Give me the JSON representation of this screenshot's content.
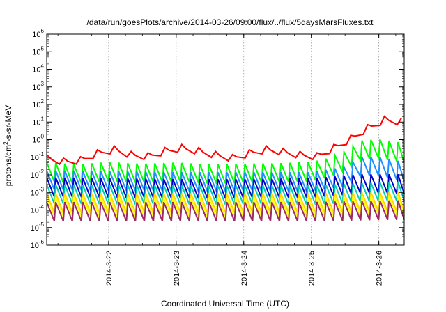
{
  "chart_data": {
    "type": "line",
    "title": "/data/run/goesPlots/archive/2014-03-26/09:00/flux/../flux/5daysMarsFluxes.txt",
    "xlabel": "Coordinated Universal Time (UTC)",
    "ylabel": {
      "prefix": "protons/cm",
      "sup": "2",
      "suffix": "-s-sr-MeV"
    },
    "y_scale": "log",
    "ylim": [
      1e-06,
      1000000.0
    ],
    "y_ticks": [
      {
        "exp": -6,
        "label_base": "10",
        "label_exp": "-6"
      },
      {
        "exp": -5,
        "label_base": "10",
        "label_exp": "-5"
      },
      {
        "exp": -4,
        "label_base": "10",
        "label_exp": "-4"
      },
      {
        "exp": -3,
        "label_base": "10",
        "label_exp": "-3"
      },
      {
        "exp": -2,
        "label_base": "10",
        "label_exp": "-2"
      },
      {
        "exp": -1,
        "label_base": "10",
        "label_exp": "-1"
      },
      {
        "exp": 0,
        "label_base": "10",
        "label_exp": "0"
      },
      {
        "exp": 1,
        "label_base": "10",
        "label_exp": "1"
      },
      {
        "exp": 2,
        "label_base": "10",
        "label_exp": "2"
      },
      {
        "exp": 3,
        "label_base": "10",
        "label_exp": "3"
      },
      {
        "exp": 4,
        "label_base": "10",
        "label_exp": "4"
      },
      {
        "exp": 5,
        "label_base": "10",
        "label_exp": "5"
      },
      {
        "exp": 6,
        "label_base": "10",
        "label_exp": "6"
      }
    ],
    "xlim": [
      "2014-03-21T02:00",
      "2014-03-26T09:00"
    ],
    "x_ticks": [
      {
        "t": "2014-03-22T00:00",
        "label": "2014-3-22"
      },
      {
        "t": "2014-03-23T00:00",
        "label": "2014-3-23"
      },
      {
        "t": "2014-03-24T00:00",
        "label": "2014-3-24"
      },
      {
        "t": "2014-03-25T00:00",
        "label": "2014-3-25"
      },
      {
        "t": "2014-03-26T00:00",
        "label": "2014-3-26"
      }
    ],
    "grid": "vertical dotted at day ticks",
    "series": [
      {
        "color": "#ff0000",
        "sawtooth": false,
        "x": [
          "2014-03-21T02:00",
          "2014-03-21T08:00",
          "2014-03-21T14:00",
          "2014-03-21T20:00",
          "2014-03-22T02:00",
          "2014-03-22T08:00",
          "2014-03-22T14:00",
          "2014-03-22T20:00",
          "2014-03-23T02:00",
          "2014-03-23T08:00",
          "2014-03-23T14:00",
          "2014-03-23T20:00",
          "2014-03-24T02:00",
          "2014-03-24T08:00",
          "2014-03-24T14:00",
          "2014-03-24T20:00",
          "2014-03-25T02:00",
          "2014-03-25T08:00",
          "2014-03-25T14:00",
          "2014-03-25T20:00",
          "2014-03-26T02:00",
          "2014-03-26T09:00"
        ],
        "values": [
          0.08,
          0.05,
          0.06,
          0.15,
          0.25,
          0.12,
          0.1,
          0.2,
          0.3,
          0.2,
          0.12,
          0.08,
          0.15,
          0.25,
          0.18,
          0.12,
          0.1,
          0.3,
          1.0,
          4.0,
          12.0,
          9.0
        ]
      },
      {
        "color": "#00ff00",
        "sawtooth": true,
        "period_hours": 3.2,
        "x": [
          "2014-03-21T02:00",
          "2014-03-21T12:00",
          "2014-03-22T00:00",
          "2014-03-22T12:00",
          "2014-03-23T00:00",
          "2014-03-23T12:00",
          "2014-03-24T00:00",
          "2014-03-24T12:00",
          "2014-03-25T00:00",
          "2014-03-25T06:00",
          "2014-03-25T12:00",
          "2014-03-25T18:00",
          "2014-03-26T00:00",
          "2014-03-26T09:00"
        ],
        "values": [
          0.015,
          0.011,
          0.015,
          0.012,
          0.014,
          0.011,
          0.012,
          0.013,
          0.015,
          0.025,
          0.06,
          0.25,
          0.3,
          0.18
        ]
      },
      {
        "color": "#1e90ff",
        "sawtooth": true,
        "period_hours": 3.2,
        "x": [
          "2014-03-21T02:00",
          "2014-03-22T00:00",
          "2014-03-23T00:00",
          "2014-03-24T00:00",
          "2014-03-25T00:00",
          "2014-03-25T12:00",
          "2014-03-25T18:00",
          "2014-03-26T00:00",
          "2014-03-26T09:00"
        ],
        "values": [
          0.005,
          0.0045,
          0.004,
          0.004,
          0.004,
          0.008,
          0.03,
          0.03,
          0.015
        ]
      },
      {
        "color": "#0000cd",
        "sawtooth": true,
        "period_hours": 3.2,
        "x": [
          "2014-03-21T02:00",
          "2014-03-22T00:00",
          "2014-03-23T00:00",
          "2014-03-24T00:00",
          "2014-03-25T00:00",
          "2014-03-25T18:00",
          "2014-03-26T09:00"
        ],
        "values": [
          0.002,
          0.0018,
          0.0016,
          0.0016,
          0.0018,
          0.003,
          0.003
        ]
      },
      {
        "color": "#00cdb0",
        "sawtooth": true,
        "period_hours": 3.2,
        "x": [
          "2014-03-21T02:00",
          "2014-03-23T00:00",
          "2014-03-25T00:00",
          "2014-03-26T09:00"
        ],
        "values": [
          0.0008,
          0.0007,
          0.0007,
          0.0012
        ]
      },
      {
        "color": "#ffd700",
        "sawtooth": true,
        "period_hours": 3.2,
        "x": [
          "2014-03-21T02:00",
          "2014-03-23T00:00",
          "2014-03-25T00:00",
          "2014-03-26T09:00"
        ],
        "values": [
          0.00025,
          0.00025,
          0.00025,
          0.0003
        ]
      },
      {
        "color": "#ffff00",
        "sawtooth": true,
        "period_hours": 3.2,
        "x": [
          "2014-03-21T02:00",
          "2014-03-23T00:00",
          "2014-03-25T00:00",
          "2014-03-26T09:00"
        ],
        "values": [
          0.00015,
          0.00014,
          0.00014,
          0.00018
        ]
      },
      {
        "color": "#9c2a64",
        "sawtooth": true,
        "period_hours": 3.2,
        "x": [
          "2014-03-21T02:00",
          "2014-03-23T00:00",
          "2014-03-25T00:00",
          "2014-03-26T09:00"
        ],
        "values": [
          8e-05,
          8e-05,
          8e-05,
          0.0001
        ]
      }
    ]
  }
}
